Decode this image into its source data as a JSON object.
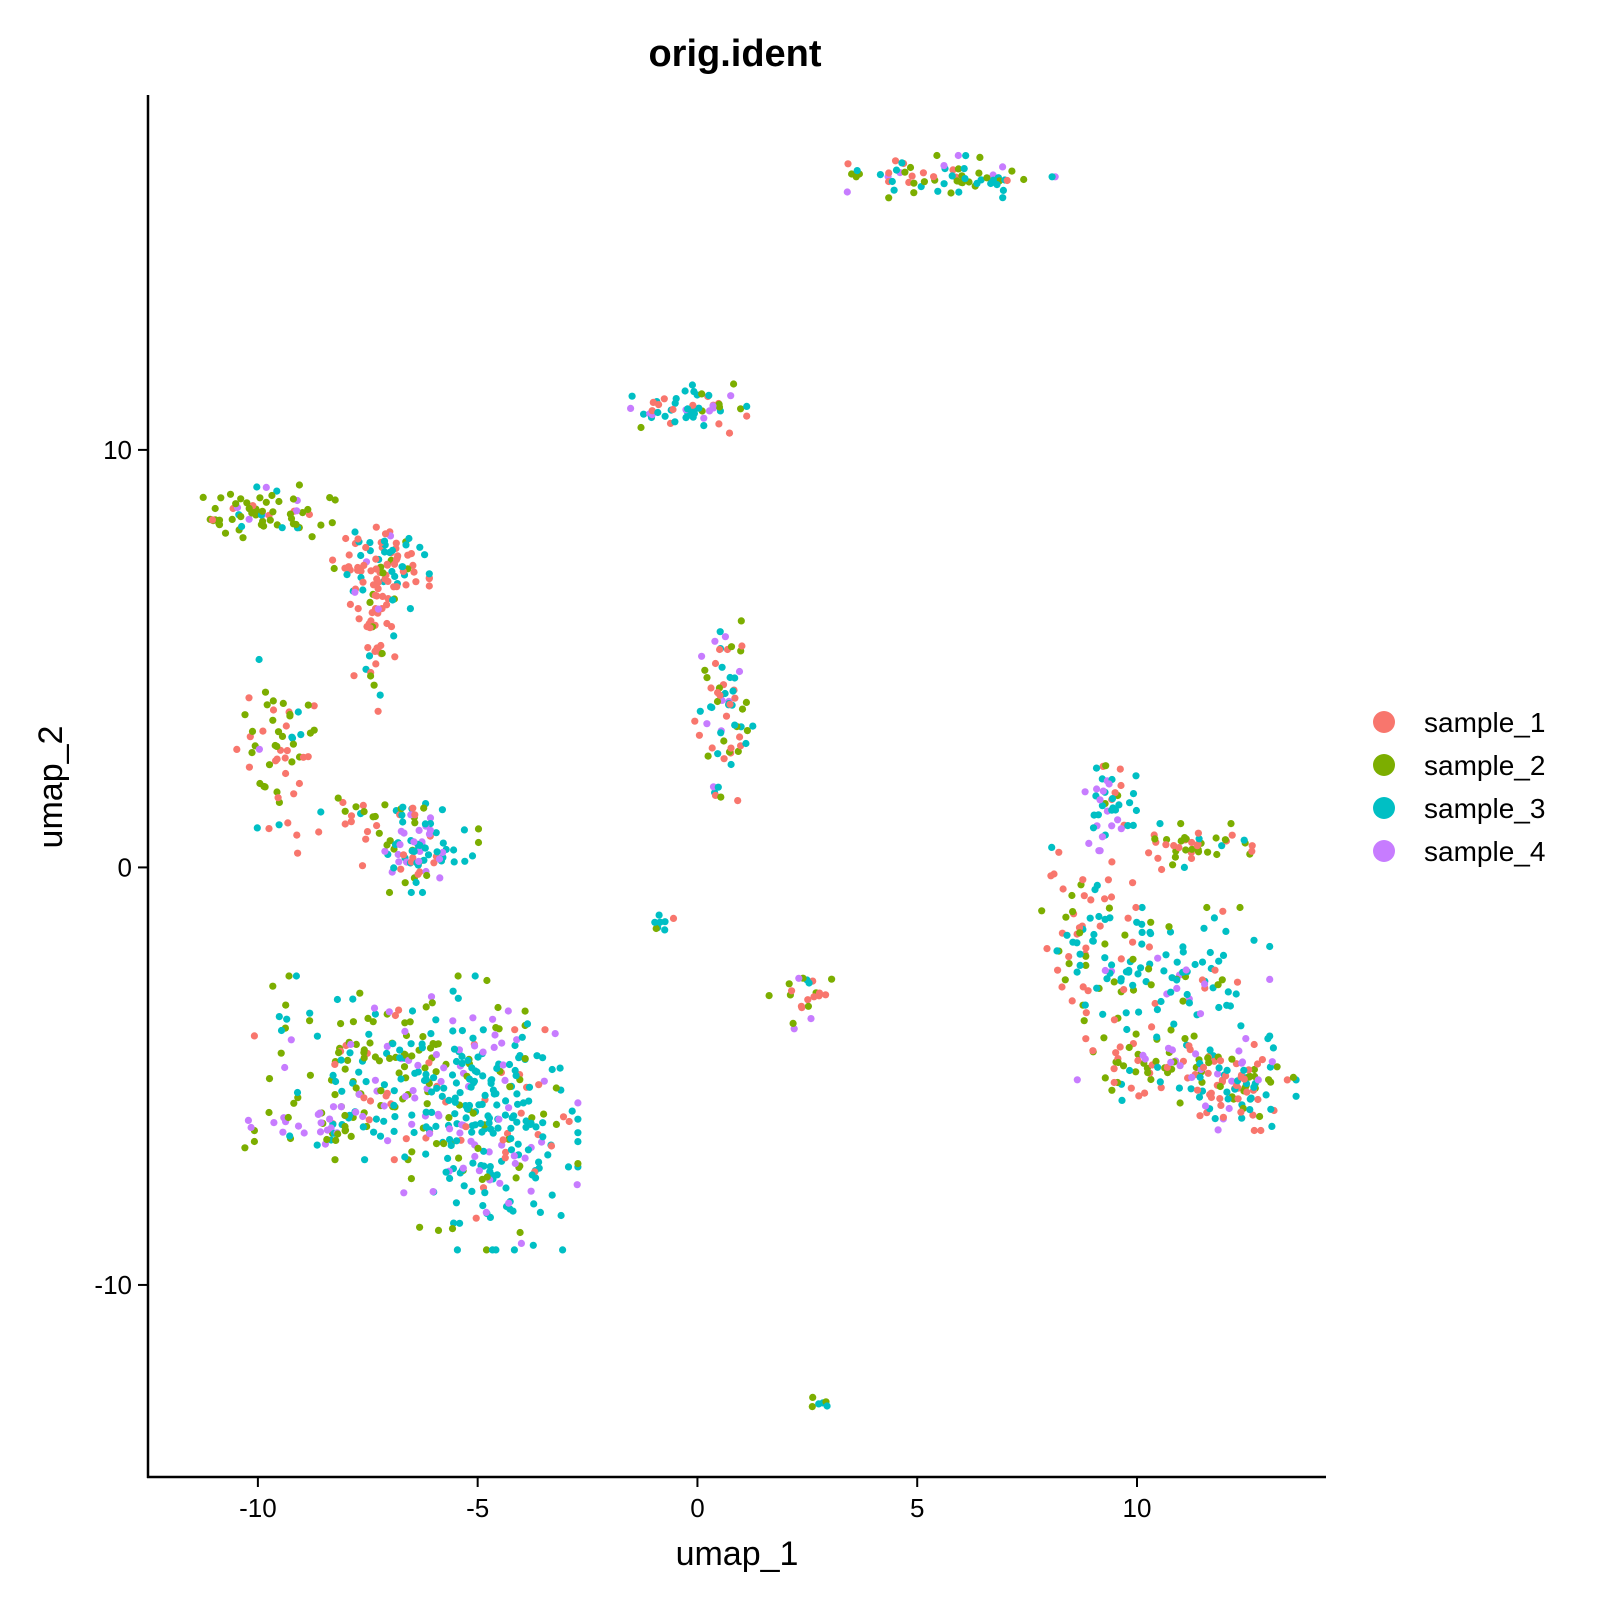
{
  "chart_data": {
    "type": "scatter",
    "title": "orig.ident",
    "xlabel": "umap_1",
    "ylabel": "umap_2",
    "xlim": [
      -12.5,
      14.3
    ],
    "ylim": [
      -14.6,
      18.5
    ],
    "xticks": [
      -10,
      -5,
      0,
      5,
      10
    ],
    "xtick_labels": [
      "-10",
      "-5",
      "0",
      "5",
      "10"
    ],
    "yticks": [
      -10,
      0,
      10
    ],
    "ytick_labels": [
      "-10",
      "0",
      "10"
    ],
    "grid": false,
    "legend_position": "right",
    "series": [
      {
        "name": "sample_1",
        "color": "#F8766D"
      },
      {
        "name": "sample_2",
        "color": "#7CAE00"
      },
      {
        "name": "sample_3",
        "color": "#00BFC4"
      },
      {
        "name": "sample_4",
        "color": "#C77CFF"
      }
    ],
    "clusters": [
      {
        "center": [
          5.5,
          16.5
        ],
        "spread": [
          1.2,
          0.25
        ],
        "n": 70,
        "mix": [
          0.2,
          0.3,
          0.35,
          0.15
        ],
        "note": "top elongated"
      },
      {
        "center": [
          -0.2,
          11.0
        ],
        "spread": [
          0.6,
          0.3
        ],
        "n": 55,
        "mix": [
          0.2,
          0.25,
          0.45,
          0.1
        ]
      },
      {
        "center": [
          -10.0,
          8.5
        ],
        "spread": [
          0.8,
          0.3
        ],
        "n": 70,
        "mix": [
          0.05,
          0.75,
          0.12,
          0.08
        ]
      },
      {
        "center": [
          -7.2,
          7.3
        ],
        "spread": [
          0.5,
          0.5
        ],
        "n": 90,
        "mix": [
          0.55,
          0.1,
          0.3,
          0.05
        ]
      },
      {
        "center": [
          -7.3,
          5.5
        ],
        "spread": [
          0.25,
          0.8
        ],
        "n": 45,
        "mix": [
          0.65,
          0.1,
          0.2,
          0.05
        ]
      },
      {
        "center": [
          -9.6,
          3.0
        ],
        "spread": [
          0.4,
          0.9
        ],
        "n": 55,
        "mix": [
          0.35,
          0.5,
          0.1,
          0.05
        ]
      },
      {
        "center": [
          -6.3,
          0.5
        ],
        "spread": [
          0.6,
          0.5
        ],
        "n": 90,
        "mix": [
          0.15,
          0.2,
          0.5,
          0.15
        ]
      },
      {
        "center": [
          -8.2,
          1.0
        ],
        "spread": [
          0.9,
          0.3
        ],
        "n": 25,
        "mix": [
          0.4,
          0.4,
          0.15,
          0.05
        ]
      },
      {
        "center": [
          0.6,
          3.8
        ],
        "spread": [
          0.3,
          1.0
        ],
        "n": 70,
        "mix": [
          0.3,
          0.3,
          0.25,
          0.15
        ]
      },
      {
        "center": [
          -0.8,
          -1.3
        ],
        "spread": [
          0.15,
          0.1
        ],
        "n": 8,
        "mix": [
          0.1,
          0.4,
          0.4,
          0.1
        ]
      },
      {
        "center": [
          2.4,
          -3.0
        ],
        "spread": [
          0.35,
          0.4
        ],
        "n": 22,
        "mix": [
          0.35,
          0.25,
          0.25,
          0.15
        ]
      },
      {
        "center": [
          2.8,
          -12.8
        ],
        "spread": [
          0.1,
          0.08
        ],
        "n": 6,
        "mix": [
          0.1,
          0.4,
          0.5,
          0.0
        ]
      },
      {
        "center": [
          -7.0,
          -4.8
        ],
        "spread": [
          1.4,
          1.0
        ],
        "n": 210,
        "mix": [
          0.1,
          0.45,
          0.35,
          0.1
        ]
      },
      {
        "center": [
          -4.7,
          -6.3
        ],
        "spread": [
          0.9,
          1.3
        ],
        "n": 260,
        "mix": [
          0.08,
          0.15,
          0.6,
          0.17
        ]
      },
      {
        "center": [
          -8.8,
          -6.2
        ],
        "spread": [
          0.7,
          0.3
        ],
        "n": 35,
        "mix": [
          0.0,
          0.35,
          0.1,
          0.55
        ]
      },
      {
        "center": [
          9.4,
          1.5
        ],
        "spread": [
          0.3,
          0.5
        ],
        "n": 45,
        "mix": [
          0.05,
          0.1,
          0.55,
          0.3
        ]
      },
      {
        "center": [
          11.3,
          0.5
        ],
        "spread": [
          0.6,
          0.25
        ],
        "n": 45,
        "mix": [
          0.45,
          0.45,
          0.1,
          0.0
        ]
      },
      {
        "center": [
          8.8,
          -1.5
        ],
        "spread": [
          0.5,
          0.9
        ],
        "n": 60,
        "mix": [
          0.5,
          0.3,
          0.2,
          0.0
        ]
      },
      {
        "center": [
          10.6,
          -2.5
        ],
        "spread": [
          1.1,
          0.7
        ],
        "n": 110,
        "mix": [
          0.1,
          0.2,
          0.6,
          0.1
        ]
      },
      {
        "center": [
          10.4,
          -4.7
        ],
        "spread": [
          0.9,
          0.4
        ],
        "n": 70,
        "mix": [
          0.3,
          0.45,
          0.15,
          0.1
        ]
      },
      {
        "center": [
          12.3,
          -5.2
        ],
        "spread": [
          0.6,
          0.5
        ],
        "n": 110,
        "mix": [
          0.3,
          0.2,
          0.35,
          0.15
        ]
      }
    ]
  },
  "legend": {
    "items": [
      {
        "label": "sample_1",
        "color": "#F8766D"
      },
      {
        "label": "sample_2",
        "color": "#7CAE00"
      },
      {
        "label": "sample_3",
        "color": "#00BFC4"
      },
      {
        "label": "sample_4",
        "color": "#C77CFF"
      }
    ]
  }
}
